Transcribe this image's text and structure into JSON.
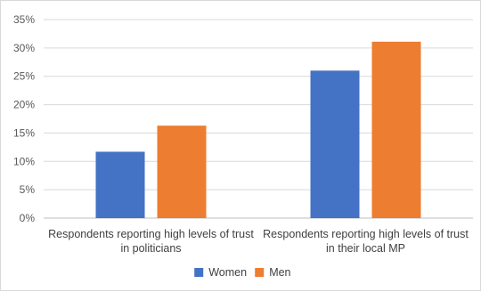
{
  "chart_data": {
    "type": "bar",
    "title": "",
    "xlabel": "",
    "ylabel": "",
    "ylim": [
      0,
      35
    ],
    "y_tick_step": 5,
    "y_tick_format": "percent",
    "grid": true,
    "legend_position": "bottom",
    "categories": [
      [
        "Respondents reporting high levels of trust",
        "in politicians"
      ],
      [
        "Respondents reporting high levels of trust",
        "in their local MP"
      ]
    ],
    "series": [
      {
        "name": "Women",
        "color": "#4472C4",
        "values": [
          11.7,
          26.0
        ]
      },
      {
        "name": "Men",
        "color": "#ED7D31",
        "values": [
          16.3,
          31.1
        ]
      }
    ]
  }
}
